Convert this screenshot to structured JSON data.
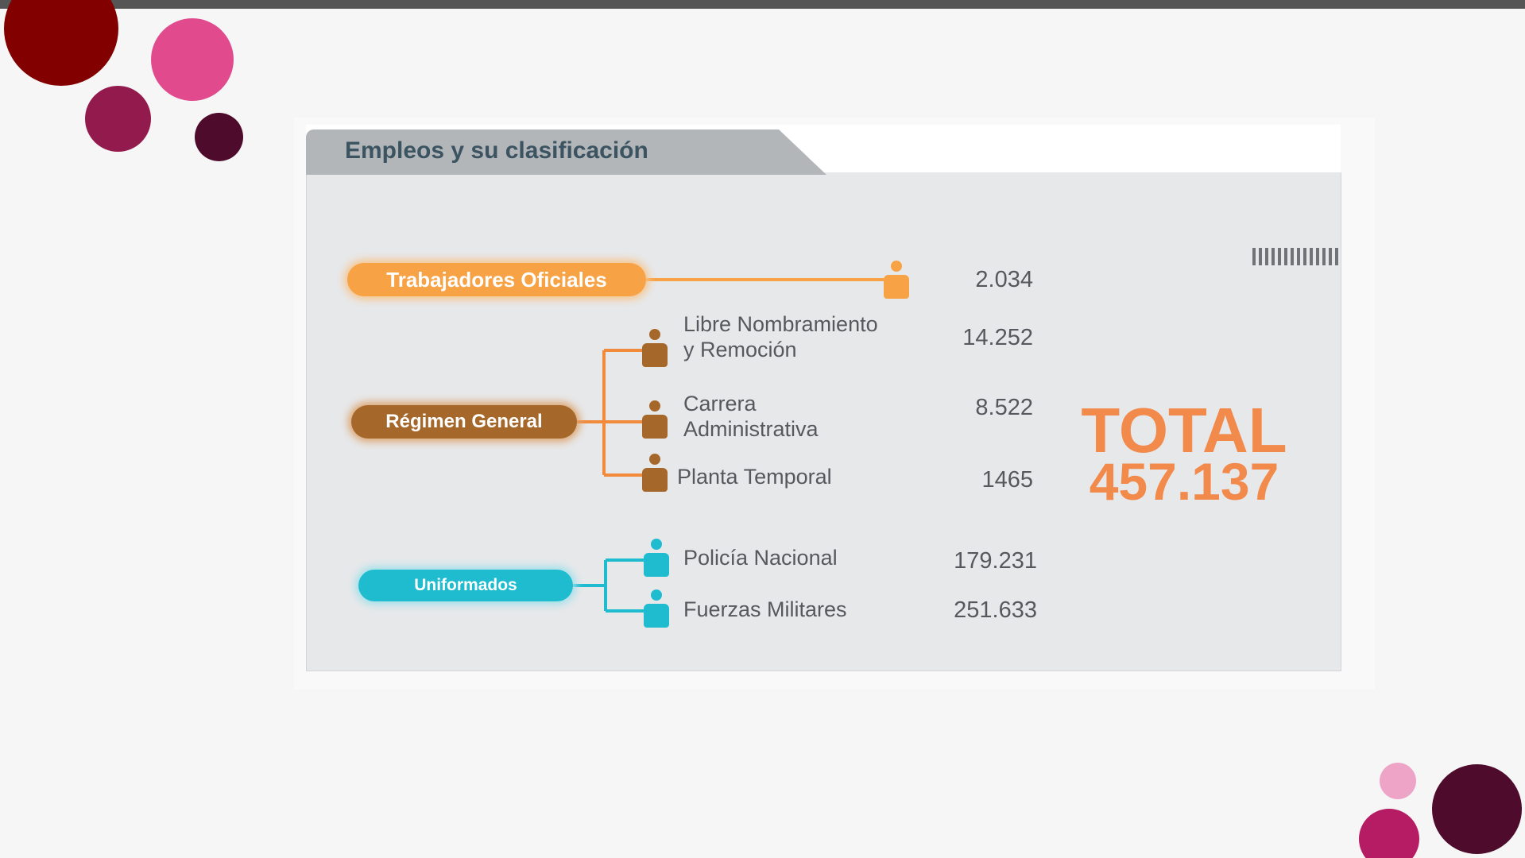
{
  "title": "Empleos y su clasificación",
  "groups": [
    {
      "label": "Trabajadores Oficiales",
      "color": "#f7a245",
      "items": [
        {
          "label": "",
          "value": "2.034"
        }
      ]
    },
    {
      "label": "Régimen General",
      "color": "#a6682a",
      "items": [
        {
          "label_line1": "Libre Nombramiento",
          "label_line2": "y Remoción",
          "value": "14.252"
        },
        {
          "label_line1": "Carrera",
          "label_line2": "Administrativa",
          "value": "8.522"
        },
        {
          "label_line1": "Planta Temporal",
          "value": "1465"
        }
      ]
    },
    {
      "label": "Uniformados",
      "color": "#1fbcd0",
      "items": [
        {
          "label": "Policía Nacional",
          "value": "179.231"
        },
        {
          "label": "Fuerzas Militares",
          "value": "251.633"
        }
      ]
    }
  ],
  "total": {
    "label": "TOTAL",
    "value": "457.137",
    "color": "#f28a4c"
  },
  "decor_colors": [
    "#820000",
    "#e14b8e",
    "#931a4d",
    "#4e0b2b",
    "#eda4c7",
    "#b51c63"
  ]
}
